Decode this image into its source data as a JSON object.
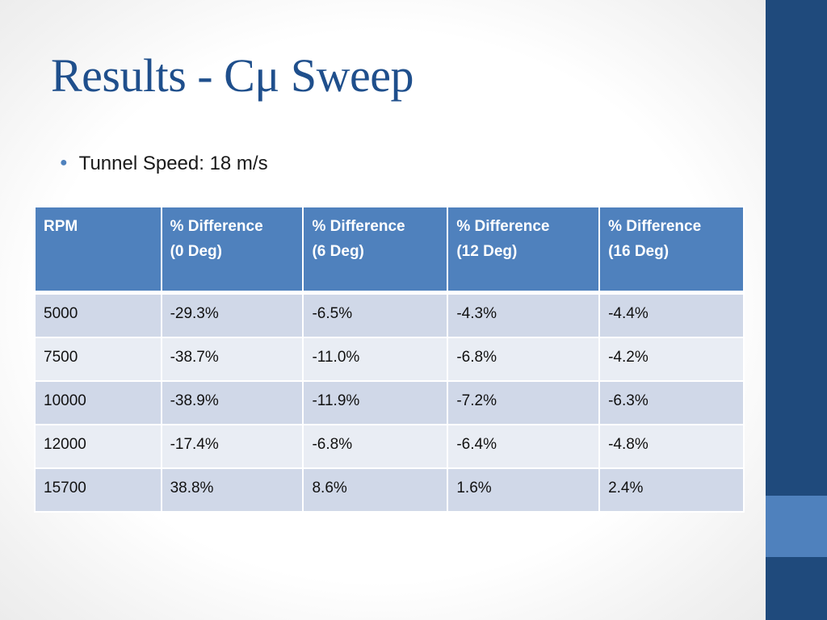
{
  "slide": {
    "title": "Results - Cμ Sweep",
    "bullets": [
      "Tunnel Speed: 18 m/s"
    ]
  },
  "table": {
    "headers": [
      [
        "RPM"
      ],
      [
        "% Difference",
        "(0 Deg)"
      ],
      [
        "% Difference",
        "(6 Deg)"
      ],
      [
        "% Difference",
        "(12 Deg)"
      ],
      [
        "% Difference",
        "(16 Deg)"
      ]
    ],
    "rows": [
      [
        "5000",
        "-29.3%",
        "-6.5%",
        "-4.3%",
        "-4.4%"
      ],
      [
        "7500",
        "-38.7%",
        "-11.0%",
        "-6.8%",
        "-4.2%"
      ],
      [
        "10000",
        "-38.9%",
        "-11.9%",
        "-7.2%",
        "-6.3%"
      ],
      [
        "12000",
        "-17.4%",
        "-6.8%",
        "-6.4%",
        "-4.8%"
      ],
      [
        "15700",
        "38.8%",
        "8.6%",
        "1.6%",
        "2.4%"
      ]
    ]
  },
  "colors": {
    "title": "#1f4f8c",
    "header_fill": "#4f81bd",
    "row_band_dark": "#d0d8e8",
    "row_band_light": "#e9edf4",
    "side_bar": "#1f4a7c",
    "side_accent": "#4f81bd"
  }
}
